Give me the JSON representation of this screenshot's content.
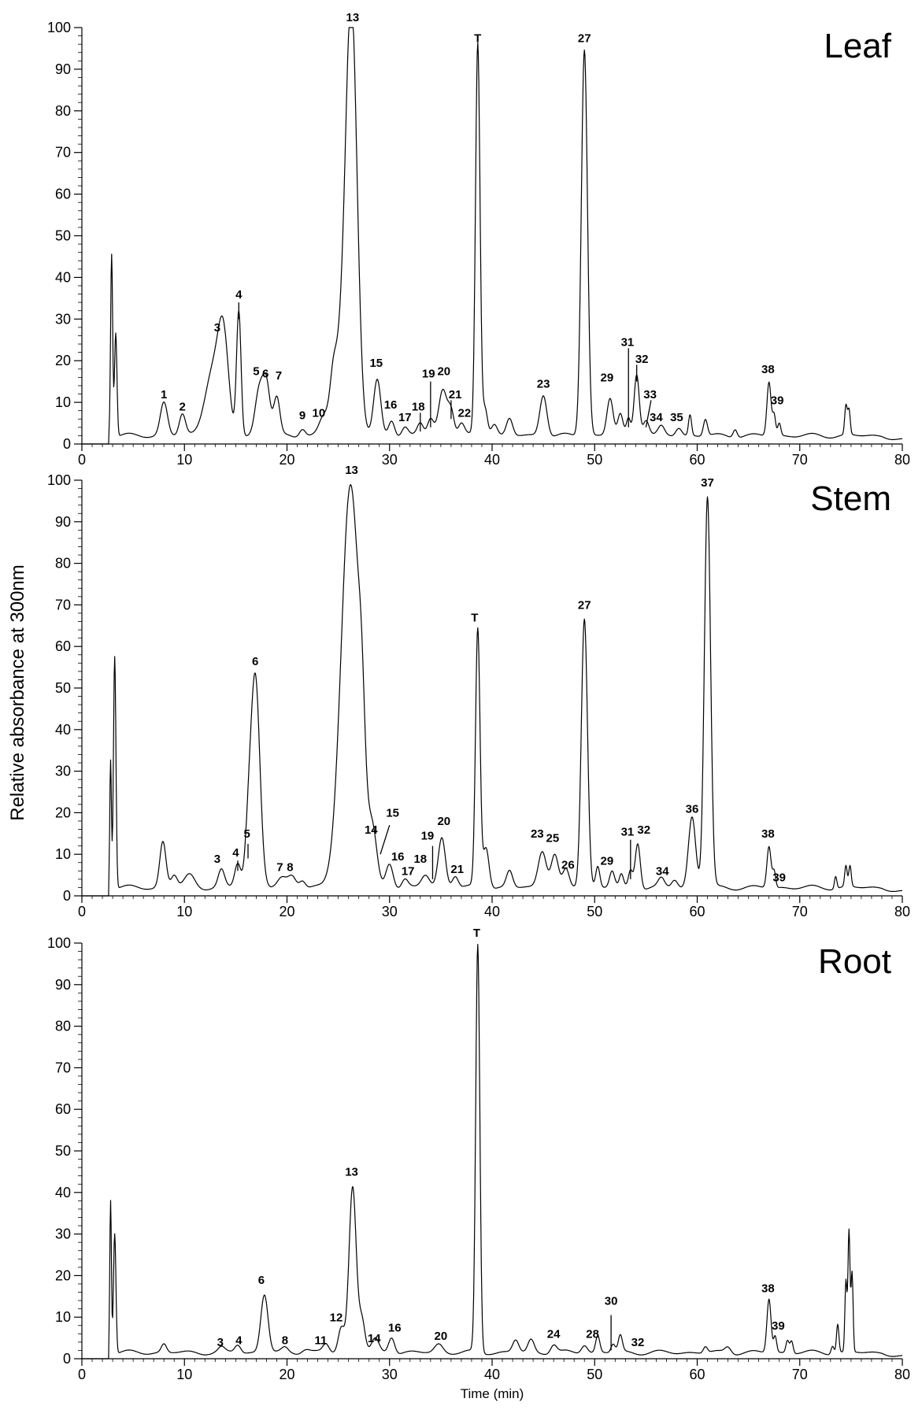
{
  "chart_data": [
    {
      "type": "line",
      "title": "Leaf",
      "ylabel": "Relative absorbance at 300nm",
      "xlabel": "",
      "xlim": [
        0,
        80
      ],
      "ylim": [
        0,
        100
      ],
      "x_ticks": [
        0,
        10,
        20,
        30,
        40,
        50,
        60,
        70,
        80
      ],
      "y_ticks": [
        0,
        10,
        20,
        30,
        40,
        50,
        60,
        70,
        80,
        90,
        100
      ],
      "baseline": 2,
      "peaks": [
        {
          "x": 2.9,
          "y": 44,
          "w": 0.1
        },
        {
          "x": 3.3,
          "y": 25,
          "w": 0.12
        },
        {
          "x": 8.0,
          "y": 8,
          "w": 0.35
        },
        {
          "x": 9.8,
          "y": 5,
          "w": 0.3
        },
        {
          "x": 12.8,
          "y": 16,
          "w": 0.8
        },
        {
          "x": 13.8,
          "y": 20,
          "w": 0.5
        },
        {
          "x": 15.3,
          "y": 30,
          "w": 0.22
        },
        {
          "x": 17.3,
          "y": 11,
          "w": 0.4
        },
        {
          "x": 18.0,
          "y": 12,
          "w": 0.35
        },
        {
          "x": 19.0,
          "y": 9,
          "w": 0.3
        },
        {
          "x": 21.5,
          "y": 2,
          "w": 0.3
        },
        {
          "x": 23.5,
          "y": 3,
          "w": 0.4
        },
        {
          "x": 24.5,
          "y": 6,
          "w": 0.3
        },
        {
          "x": 26.3,
          "y": 96,
          "w": 0.55
        },
        {
          "x": 25.3,
          "y": 20,
          "w": 0.8
        },
        {
          "x": 28.8,
          "y": 13,
          "w": 0.35
        },
        {
          "x": 30.2,
          "y": 4,
          "w": 0.3
        },
        {
          "x": 31.5,
          "y": 2,
          "w": 0.3
        },
        {
          "x": 33.0,
          "y": 3,
          "w": 0.3
        },
        {
          "x": 34.0,
          "y": 4,
          "w": 0.3
        },
        {
          "x": 35.2,
          "y": 11,
          "w": 0.4
        },
        {
          "x": 36.0,
          "y": 6,
          "w": 0.3
        },
        {
          "x": 37.0,
          "y": 3,
          "w": 0.3
        },
        {
          "x": 38.6,
          "y": 94,
          "w": 0.22
        },
        {
          "x": 39.3,
          "y": 7,
          "w": 0.25
        },
        {
          "x": 40.2,
          "y": 3,
          "w": 0.3
        },
        {
          "x": 41.7,
          "y": 4,
          "w": 0.3
        },
        {
          "x": 45.0,
          "y": 10,
          "w": 0.35
        },
        {
          "x": 49.0,
          "y": 93,
          "w": 0.3
        },
        {
          "x": 51.5,
          "y": 9,
          "w": 0.3
        },
        {
          "x": 52.5,
          "y": 5,
          "w": 0.25
        },
        {
          "x": 53.3,
          "y": 4,
          "w": 0.2
        },
        {
          "x": 54.1,
          "y": 15,
          "w": 0.25
        },
        {
          "x": 55.0,
          "y": 4,
          "w": 0.3
        },
        {
          "x": 56.5,
          "y": 2,
          "w": 0.3
        },
        {
          "x": 58.2,
          "y": 2,
          "w": 0.3
        },
        {
          "x": 59.3,
          "y": 5,
          "w": 0.15
        },
        {
          "x": 60.8,
          "y": 4,
          "w": 0.2
        },
        {
          "x": 63.7,
          "y": 2,
          "w": 0.2
        },
        {
          "x": 67.0,
          "y": 13,
          "w": 0.2
        },
        {
          "x": 67.5,
          "y": 5,
          "w": 0.15
        },
        {
          "x": 68.0,
          "y": 3,
          "w": 0.15
        },
        {
          "x": 74.5,
          "y": 7,
          "w": 0.12
        },
        {
          "x": 74.8,
          "y": 6,
          "w": 0.12
        }
      ],
      "labels": [
        {
          "text": "1",
          "x": 8.0,
          "y": 11
        },
        {
          "text": "2",
          "x": 9.8,
          "y": 8
        },
        {
          "text": "3",
          "x": 13.2,
          "y": 27
        },
        {
          "text": "4",
          "x": 15.3,
          "y": 35
        },
        {
          "text": "5",
          "x": 17.0,
          "y": 16.5
        },
        {
          "text": "6",
          "x": 17.9,
          "y": 16
        },
        {
          "text": "7",
          "x": 19.2,
          "y": 15.5
        },
        {
          "text": "9",
          "x": 21.5,
          "y": 6
        },
        {
          "text": "10",
          "x": 23.1,
          "y": 6.5
        },
        {
          "text": "13",
          "x": 26.4,
          "y": 101.5
        },
        {
          "text": "15",
          "x": 28.7,
          "y": 18.5
        },
        {
          "text": "16",
          "x": 30.1,
          "y": 8.5
        },
        {
          "text": "17",
          "x": 31.5,
          "y": 5.5
        },
        {
          "text": "18",
          "x": 32.8,
          "y": 8
        },
        {
          "text": "19",
          "x": 33.8,
          "y": 16
        },
        {
          "text": "20",
          "x": 35.3,
          "y": 16.5
        },
        {
          "text": "21",
          "x": 36.4,
          "y": 11
        },
        {
          "text": "22",
          "x": 37.3,
          "y": 6.5
        },
        {
          "text": "T",
          "x": 38.6,
          "y": 96.5
        },
        {
          "text": "23",
          "x": 45.0,
          "y": 13.5
        },
        {
          "text": "27",
          "x": 49.0,
          "y": 96.5
        },
        {
          "text": "29",
          "x": 51.2,
          "y": 15
        },
        {
          "text": "31",
          "x": 53.2,
          "y": 23.5
        },
        {
          "text": "32",
          "x": 54.6,
          "y": 19.5
        },
        {
          "text": "33",
          "x": 55.4,
          "y": 11
        },
        {
          "text": "34",
          "x": 56.0,
          "y": 5.5
        },
        {
          "text": "35",
          "x": 58.0,
          "y": 5.5
        },
        {
          "text": "38",
          "x": 66.9,
          "y": 17
        },
        {
          "text": "39",
          "x": 67.8,
          "y": 9.5
        }
      ],
      "leaders": [
        {
          "x": 15.3,
          "y1": 30,
          "y2": 34
        },
        {
          "x": 33.0,
          "y1": 3,
          "y2": 7.5
        },
        {
          "x": 34.0,
          "y1": 4,
          "y2": 15
        },
        {
          "x": 36.0,
          "y1": 6,
          "y2": 10.5
        },
        {
          "x": 53.3,
          "y1": 4,
          "y2": 23
        },
        {
          "x": 54.1,
          "y1": 15,
          "y2": 19
        },
        {
          "x": 55.0,
          "y1": 4,
          "y2": 10.5,
          "x2": 55.5
        }
      ]
    },
    {
      "type": "line",
      "title": "Stem",
      "ylabel": "Relative absorbance at 300nm",
      "xlabel": "",
      "xlim": [
        0,
        80
      ],
      "ylim": [
        0,
        100
      ],
      "x_ticks": [
        0,
        10,
        20,
        30,
        40,
        50,
        60,
        70,
        80
      ],
      "y_ticks": [
        0,
        10,
        20,
        30,
        40,
        50,
        60,
        70,
        80,
        90,
        100
      ],
      "baseline": 2,
      "peaks": [
        {
          "x": 2.8,
          "y": 31,
          "w": 0.08
        },
        {
          "x": 3.2,
          "y": 56,
          "w": 0.12
        },
        {
          "x": 7.9,
          "y": 11,
          "w": 0.3
        },
        {
          "x": 9.0,
          "y": 3,
          "w": 0.3
        },
        {
          "x": 10.5,
          "y": 3,
          "w": 0.5
        },
        {
          "x": 13.6,
          "y": 4,
          "w": 0.3
        },
        {
          "x": 15.2,
          "y": 6,
          "w": 0.3
        },
        {
          "x": 16.2,
          "y": 9,
          "w": 0.3
        },
        {
          "x": 16.9,
          "y": 51,
          "w": 0.45
        },
        {
          "x": 19.5,
          "y": 2,
          "w": 0.4
        },
        {
          "x": 20.5,
          "y": 3,
          "w": 0.4
        },
        {
          "x": 21.5,
          "y": 2,
          "w": 0.3
        },
        {
          "x": 26.2,
          "y": 97,
          "w": 0.9
        },
        {
          "x": 27.3,
          "y": 15,
          "w": 0.3
        },
        {
          "x": 28.4,
          "y": 10,
          "w": 0.4
        },
        {
          "x": 30.0,
          "y": 6,
          "w": 0.35
        },
        {
          "x": 31.5,
          "y": 2,
          "w": 0.3
        },
        {
          "x": 33.5,
          "y": 3,
          "w": 0.4
        },
        {
          "x": 35.1,
          "y": 12,
          "w": 0.35
        },
        {
          "x": 36.4,
          "y": 3,
          "w": 0.3
        },
        {
          "x": 38.6,
          "y": 62,
          "w": 0.22
        },
        {
          "x": 39.4,
          "y": 10,
          "w": 0.3
        },
        {
          "x": 41.7,
          "y": 4,
          "w": 0.3
        },
        {
          "x": 44.9,
          "y": 9,
          "w": 0.4
        },
        {
          "x": 46.1,
          "y": 8,
          "w": 0.35
        },
        {
          "x": 47.2,
          "y": 4,
          "w": 0.3
        },
        {
          "x": 49.0,
          "y": 65,
          "w": 0.3
        },
        {
          "x": 50.3,
          "y": 5,
          "w": 0.2
        },
        {
          "x": 51.7,
          "y": 4,
          "w": 0.25
        },
        {
          "x": 52.6,
          "y": 3,
          "w": 0.2
        },
        {
          "x": 53.5,
          "y": 4,
          "w": 0.2
        },
        {
          "x": 54.2,
          "y": 11,
          "w": 0.25
        },
        {
          "x": 56.5,
          "y": 2,
          "w": 0.3
        },
        {
          "x": 57.8,
          "y": 2,
          "w": 0.3
        },
        {
          "x": 59.5,
          "y": 17,
          "w": 0.35
        },
        {
          "x": 61.0,
          "y": 94,
          "w": 0.3
        },
        {
          "x": 67.0,
          "y": 10,
          "w": 0.2
        },
        {
          "x": 67.5,
          "y": 4,
          "w": 0.15
        },
        {
          "x": 73.5,
          "y": 3,
          "w": 0.12
        },
        {
          "x": 74.5,
          "y": 5,
          "w": 0.12
        },
        {
          "x": 74.9,
          "y": 5,
          "w": 0.12
        }
      ],
      "labels": [
        {
          "text": "3",
          "x": 13.2,
          "y": 8
        },
        {
          "text": "4",
          "x": 15.0,
          "y": 9.5
        },
        {
          "text": "5",
          "x": 16.1,
          "y": 14
        },
        {
          "text": "6",
          "x": 16.9,
          "y": 55.5
        },
        {
          "text": "7",
          "x": 19.3,
          "y": 6
        },
        {
          "text": "8",
          "x": 20.3,
          "y": 6
        },
        {
          "text": "13",
          "x": 26.3,
          "y": 101.5
        },
        {
          "text": "14",
          "x": 28.2,
          "y": 15
        },
        {
          "text": "15",
          "x": 30.3,
          "y": 19
        },
        {
          "text": "16",
          "x": 30.8,
          "y": 8.5
        },
        {
          "text": "17",
          "x": 31.8,
          "y": 5
        },
        {
          "text": "18",
          "x": 33.0,
          "y": 8
        },
        {
          "text": "19",
          "x": 33.7,
          "y": 13.5
        },
        {
          "text": "20",
          "x": 35.3,
          "y": 17
        },
        {
          "text": "21",
          "x": 36.6,
          "y": 5.5
        },
        {
          "text": "T",
          "x": 38.3,
          "y": 66
        },
        {
          "text": "23",
          "x": 44.4,
          "y": 14
        },
        {
          "text": "25",
          "x": 45.9,
          "y": 13
        },
        {
          "text": "26",
          "x": 47.4,
          "y": 6.5
        },
        {
          "text": "27",
          "x": 49.0,
          "y": 69
        },
        {
          "text": "29",
          "x": 51.2,
          "y": 7.5
        },
        {
          "text": "31",
          "x": 53.2,
          "y": 14.5
        },
        {
          "text": "32",
          "x": 54.8,
          "y": 15
        },
        {
          "text": "34",
          "x": 56.6,
          "y": 5
        },
        {
          "text": "36",
          "x": 59.5,
          "y": 20
        },
        {
          "text": "37",
          "x": 61.0,
          "y": 98.5
        },
        {
          "text": "38",
          "x": 66.9,
          "y": 14
        },
        {
          "text": "39",
          "x": 68.0,
          "y": 3.5
        }
      ],
      "leaders": [
        {
          "x": 15.2,
          "y1": 6,
          "y2": 8.5
        },
        {
          "x": 16.2,
          "y1": 9,
          "y2": 12.5
        },
        {
          "x": 29.1,
          "y1": 10,
          "y2": 17,
          "x2": 30.0
        },
        {
          "x": 34.2,
          "y1": 4,
          "y2": 12
        },
        {
          "x": 53.5,
          "y1": 4,
          "y2": 13.5
        }
      ]
    },
    {
      "type": "line",
      "title": "Root",
      "ylabel": "Relative absorbance at 300nm",
      "xlabel": "Time (min)",
      "xlim": [
        0,
        80
      ],
      "ylim": [
        0,
        100
      ],
      "x_ticks": [
        0,
        10,
        20,
        30,
        40,
        50,
        60,
        70,
        80
      ],
      "y_ticks": [
        0,
        10,
        20,
        30,
        40,
        50,
        60,
        70,
        80,
        90,
        100
      ],
      "baseline": 1.5,
      "peaks": [
        {
          "x": 2.8,
          "y": 37,
          "w": 0.08
        },
        {
          "x": 3.2,
          "y": 29,
          "w": 0.12
        },
        {
          "x": 8.0,
          "y": 2,
          "w": 0.25
        },
        {
          "x": 13.6,
          "y": 1,
          "w": 0.3
        },
        {
          "x": 15.2,
          "y": 2,
          "w": 0.3
        },
        {
          "x": 17.8,
          "y": 14,
          "w": 0.35
        },
        {
          "x": 19.8,
          "y": 1,
          "w": 0.3
        },
        {
          "x": 21.8,
          "y": 1,
          "w": 0.4
        },
        {
          "x": 23.8,
          "y": 2,
          "w": 0.3
        },
        {
          "x": 25.3,
          "y": 6,
          "w": 0.3
        },
        {
          "x": 26.4,
          "y": 40,
          "w": 0.35
        },
        {
          "x": 27.3,
          "y": 8,
          "w": 0.3
        },
        {
          "x": 28.6,
          "y": 3,
          "w": 0.35
        },
        {
          "x": 30.2,
          "y": 4,
          "w": 0.3
        },
        {
          "x": 34.8,
          "y": 2,
          "w": 0.4
        },
        {
          "x": 38.6,
          "y": 98,
          "w": 0.2
        },
        {
          "x": 42.3,
          "y": 3,
          "w": 0.3
        },
        {
          "x": 43.8,
          "y": 3,
          "w": 0.3
        },
        {
          "x": 46.0,
          "y": 2,
          "w": 0.3
        },
        {
          "x": 49.0,
          "y": 2,
          "w": 0.3
        },
        {
          "x": 50.3,
          "y": 4,
          "w": 0.2
        },
        {
          "x": 51.8,
          "y": 2,
          "w": 0.2
        },
        {
          "x": 52.5,
          "y": 4,
          "w": 0.2
        },
        {
          "x": 60.8,
          "y": 1.5,
          "w": 0.2
        },
        {
          "x": 63.0,
          "y": 1.5,
          "w": 0.3
        },
        {
          "x": 67.0,
          "y": 13,
          "w": 0.2
        },
        {
          "x": 67.6,
          "y": 4,
          "w": 0.15
        },
        {
          "x": 68.8,
          "y": 3,
          "w": 0.15
        },
        {
          "x": 69.2,
          "y": 3,
          "w": 0.15
        },
        {
          "x": 73.2,
          "y": 2,
          "w": 0.15
        },
        {
          "x": 73.7,
          "y": 7,
          "w": 0.12
        },
        {
          "x": 74.5,
          "y": 17,
          "w": 0.1
        },
        {
          "x": 74.8,
          "y": 29,
          "w": 0.1
        },
        {
          "x": 75.1,
          "y": 19,
          "w": 0.1
        }
      ],
      "labels": [
        {
          "text": "3",
          "x": 13.5,
          "y": 3
        },
        {
          "text": "4",
          "x": 15.3,
          "y": 3.5
        },
        {
          "text": "6",
          "x": 17.5,
          "y": 18
        },
        {
          "text": "8",
          "x": 19.8,
          "y": 3.5
        },
        {
          "text": "11",
          "x": 23.3,
          "y": 3.5
        },
        {
          "text": "12",
          "x": 24.8,
          "y": 9
        },
        {
          "text": "13",
          "x": 26.3,
          "y": 44
        },
        {
          "text": "14",
          "x": 28.5,
          "y": 4
        },
        {
          "text": "16",
          "x": 30.5,
          "y": 6.5
        },
        {
          "text": "20",
          "x": 35.0,
          "y": 4.5
        },
        {
          "text": "T",
          "x": 38.5,
          "y": 101.5
        },
        {
          "text": "24",
          "x": 46.0,
          "y": 5
        },
        {
          "text": "28",
          "x": 49.8,
          "y": 5
        },
        {
          "text": "30",
          "x": 51.6,
          "y": 13
        },
        {
          "text": "32",
          "x": 54.2,
          "y": 3
        },
        {
          "text": "38",
          "x": 66.9,
          "y": 16
        },
        {
          "text": "39",
          "x": 67.9,
          "y": 7
        }
      ],
      "leaders": [
        {
          "x": 51.6,
          "y1": 2,
          "y2": 10.5
        }
      ]
    }
  ]
}
